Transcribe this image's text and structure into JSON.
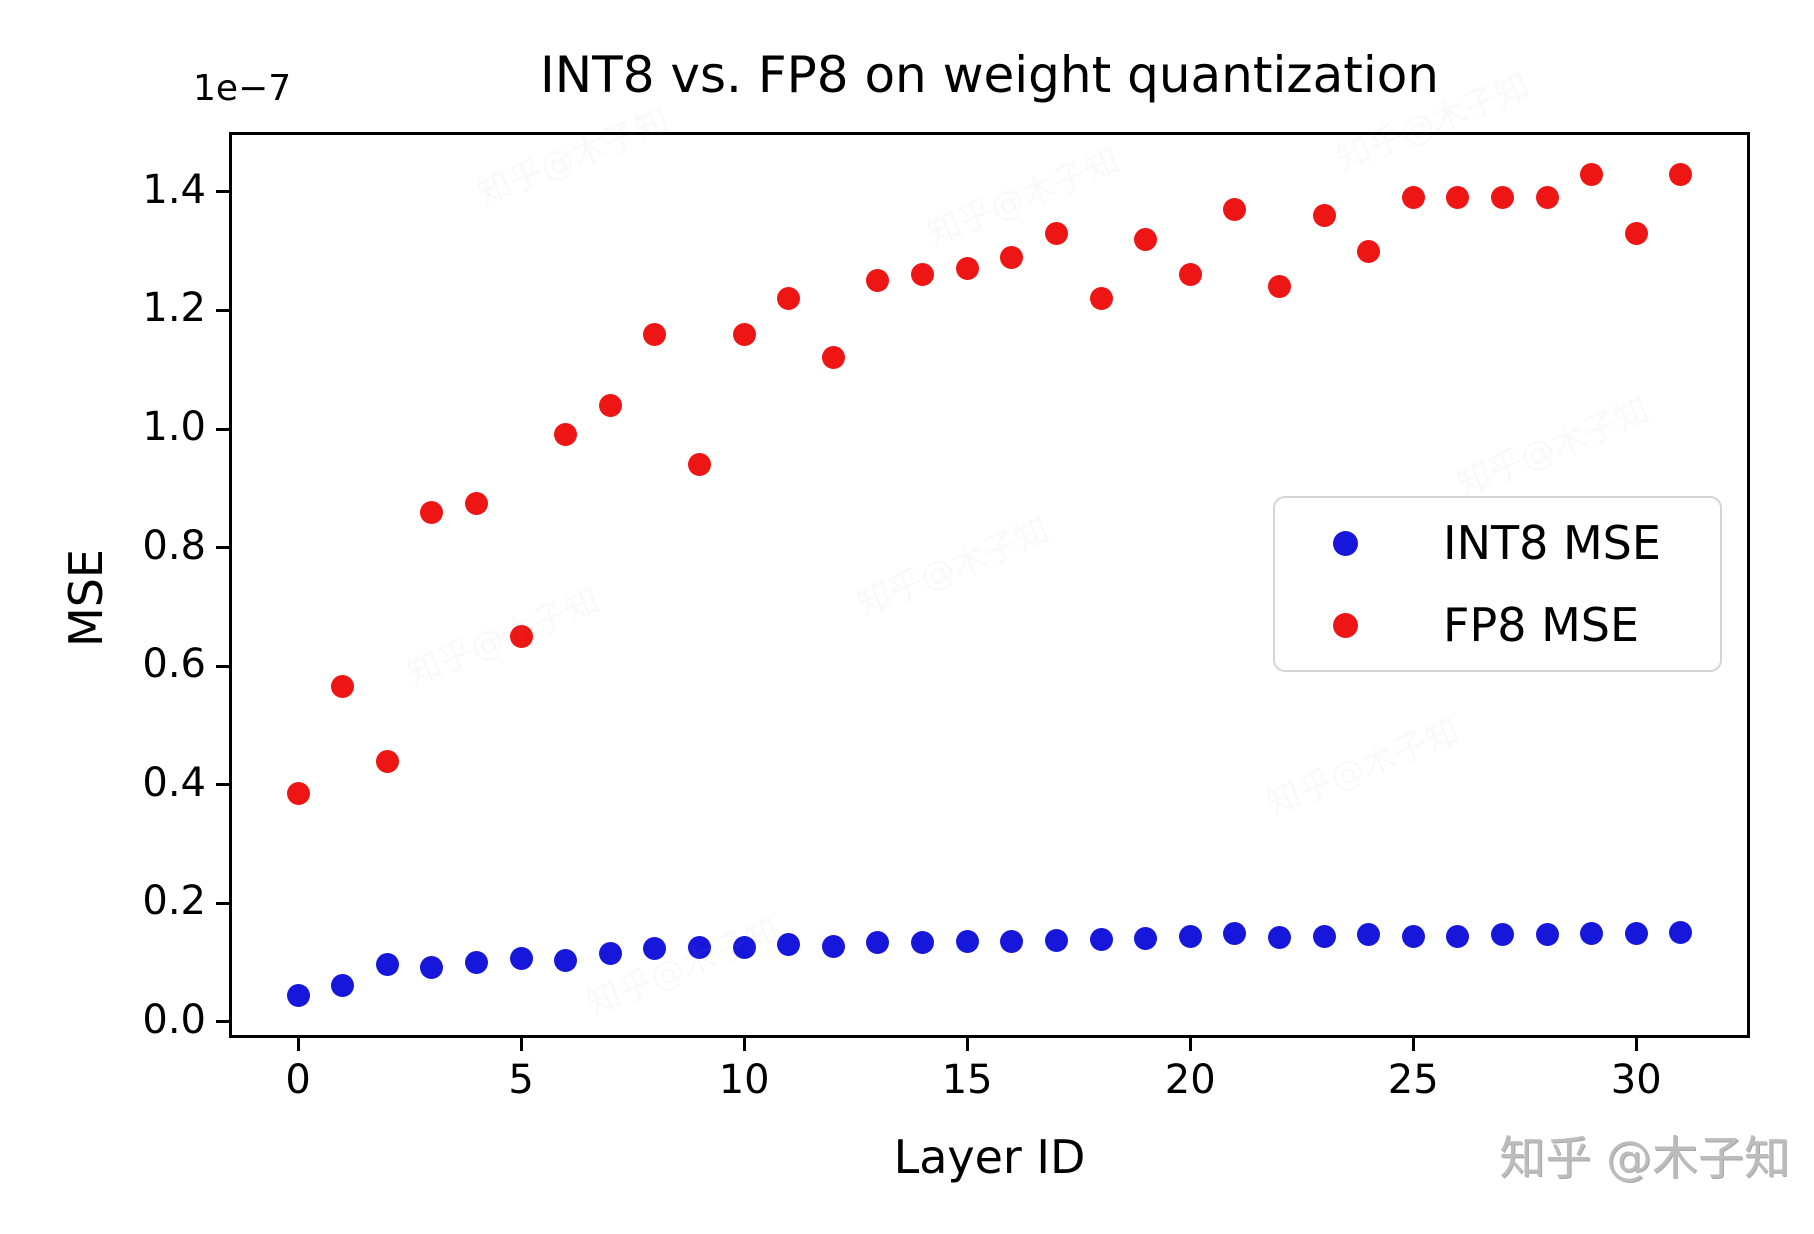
{
  "title": "INT8 vs. FP8 on weight quantization",
  "axis_offset_label": "1e−7",
  "watermark": {
    "bottom_right": "知乎 @木子知",
    "tiled": "知乎@木子知"
  },
  "legend": {
    "entries": [
      {
        "label": "INT8 MSE",
        "color": "#1717dc"
      },
      {
        "label": "FP8 MSE",
        "color": "#ee1515"
      }
    ]
  },
  "chart_data": {
    "type": "scatter",
    "title": "INT8 vs. FP8 on weight quantization",
    "xlabel": "Layer ID",
    "ylabel": "MSE",
    "y_scale_factor": "1e−7",
    "grid": false,
    "legend_position": "center right",
    "xlim": [
      -1.55,
      32.55
    ],
    "ylim": [
      -0.027,
      1.501
    ],
    "xticks": [
      0,
      5,
      10,
      15,
      20,
      25,
      30
    ],
    "yticks": [
      0.0,
      0.2,
      0.4,
      0.6,
      0.8,
      1.0,
      1.2,
      1.4
    ],
    "x": [
      0,
      1,
      2,
      3,
      4,
      5,
      6,
      7,
      8,
      9,
      10,
      11,
      12,
      13,
      14,
      15,
      16,
      17,
      18,
      19,
      20,
      21,
      22,
      23,
      24,
      25,
      26,
      27,
      28,
      29,
      30,
      31
    ],
    "series": [
      {
        "name": "INT8 MSE",
        "color": "#1717dc",
        "values": [
          0.045,
          0.062,
          0.097,
          0.092,
          0.101,
          0.107,
          0.104,
          0.115,
          0.124,
          0.125,
          0.126,
          0.131,
          0.128,
          0.134,
          0.134,
          0.135,
          0.136,
          0.138,
          0.139,
          0.141,
          0.145,
          0.15,
          0.143,
          0.144,
          0.148,
          0.144,
          0.145,
          0.147,
          0.148,
          0.15,
          0.15,
          0.151
        ]
      },
      {
        "name": "FP8 MSE",
        "color": "#ee1515",
        "values": [
          0.385,
          0.565,
          0.44,
          0.86,
          0.875,
          0.65,
          0.99,
          1.04,
          1.16,
          0.94,
          1.16,
          1.22,
          1.12,
          1.25,
          1.26,
          1.27,
          1.29,
          1.33,
          1.22,
          1.32,
          1.26,
          1.37,
          1.24,
          1.36,
          1.3,
          1.39,
          1.39,
          1.39,
          1.39,
          1.43,
          1.33,
          1.43
        ]
      }
    ]
  }
}
